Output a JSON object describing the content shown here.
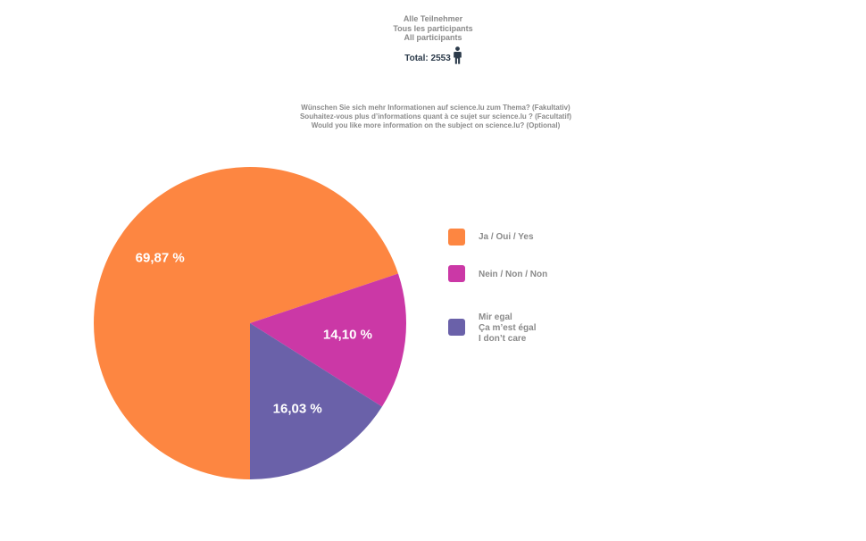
{
  "header": {
    "lines": [
      "Alle Teilnehmer",
      "Tous les participants",
      "All participants"
    ],
    "total_label": "Total: 2553"
  },
  "question": {
    "lines": [
      "Wünschen Sie sich mehr Informationen auf science.lu zum Thema? (Fakultativ)",
      "Souhaitez-vous plus d’informations quant à ce sujet sur science.lu ? (Facultatif)",
      "Would you like more information on the subject on science.lu? (Optional)"
    ]
  },
  "colors": {
    "yes": "#fd8641",
    "no": "#cb38a6",
    "dont_care": "#6a61a9",
    "icon": "#2b3a4a"
  },
  "icons": {
    "total": "person-icon"
  },
  "chart_data": {
    "type": "pie",
    "title": "",
    "slices": [
      {
        "label": "Ja / Oui / Yes",
        "value": 69.87,
        "display": "69,87 %",
        "color": "#fd8641"
      },
      {
        "label": "Nein / Non / Non",
        "value": 14.1,
        "display": "14,10 %",
        "color": "#cb38a6"
      },
      {
        "label": "Mir egal\nÇa m’est égal\nI don’t care",
        "value": 16.03,
        "display": "16,03 %",
        "color": "#6a61a9"
      }
    ],
    "start_angle_deg": -90,
    "direction": "counterclockwise",
    "legend_position": "right"
  },
  "legend": {
    "items": [
      {
        "lines": [
          "Ja / Oui / Yes"
        ]
      },
      {
        "lines": [
          "Nein / Non / Non"
        ]
      },
      {
        "lines": [
          "Mir egal",
          "Ça m’est égal",
          "I don’t care"
        ]
      }
    ]
  }
}
